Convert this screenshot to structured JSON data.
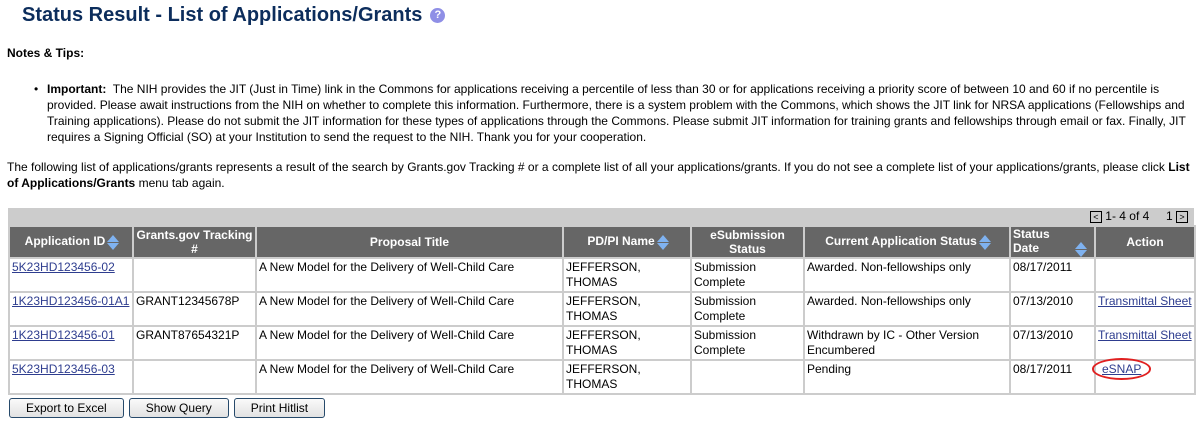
{
  "title": "Status Result - List of Applications/Grants",
  "help_icon": "question-circle-icon",
  "notes_label": "Notes & Tips:",
  "tip_label": "Important:",
  "tip_text": "The NIH provides the JIT (Just in Time) link in the Commons for applications receiving a percentile of less than 30 or for applications receiving a priority score of between 10 and 60 if no percentile is provided.  Please await instructions from the NIH on whether to complete this information.  Furthermore, there is a system problem with the Commons, which shows the JIT link for NRSA applications (Fellowships and Training applications).  Please do not submit the JIT information for these types of applications through the Commons. Please submit JIT information for training grants and fellowships through email or fax.  Finally, JIT requires a Signing Official (SO) at your Institution to send the request to the NIH.    Thank you for your cooperation.",
  "intro_text": "The following list of applications/grants represents a result of the search by Grants.gov Tracking # or a complete list of all your applications/grants. If you do not see a complete list of your applications/grants, please click ",
  "intro_bold": "List of Applications/Grants",
  "intro_end": " menu tab again.",
  "pager": {
    "range": "1- 4 of 4",
    "page": "1"
  },
  "columns": [
    "Application ID",
    "Grants.gov Tracking #",
    "Proposal Title",
    "PD/PI Name",
    "eSubmission Status",
    "Current Application Status",
    "Status Date",
    "Action"
  ],
  "rows": [
    {
      "app_id": "5K23HD123456-02",
      "tracking": "",
      "title": "A New Model for the Delivery of Well-Child Care",
      "pi": "JEFFERSON, THOMAS",
      "esub": "Submission Complete",
      "status": "Awarded. Non-fellowships only",
      "date": "08/17/2011",
      "action": ""
    },
    {
      "app_id": "1K23HD123456-01A1",
      "tracking": "GRANT12345678P",
      "title": "A New Model for the Delivery of Well-Child Care",
      "pi": "JEFFERSON, THOMAS",
      "esub": "Submission Complete",
      "status": "Awarded. Non-fellowships only",
      "date": "07/13/2010",
      "action": "Transmittal Sheet"
    },
    {
      "app_id": "1K23HD123456-01",
      "tracking": "GRANT87654321P",
      "title": "A New Model for the Delivery of Well-Child Care",
      "pi": "JEFFERSON, THOMAS",
      "esub": "Submission Complete",
      "status": "Withdrawn by IC - Other Version Encumbered",
      "date": "07/13/2010",
      "action": "Transmittal Sheet"
    },
    {
      "app_id": "5K23HD123456-03",
      "tracking": "",
      "title": "A New Model for the Delivery of Well-Child Care",
      "pi": "JEFFERSON, THOMAS",
      "esub": "",
      "status": "Pending",
      "date": "08/17/2011",
      "action": "eSNAP"
    }
  ],
  "buttons": {
    "export": "Export to Excel",
    "query": "Show Query",
    "print": "Print Hitlist"
  }
}
